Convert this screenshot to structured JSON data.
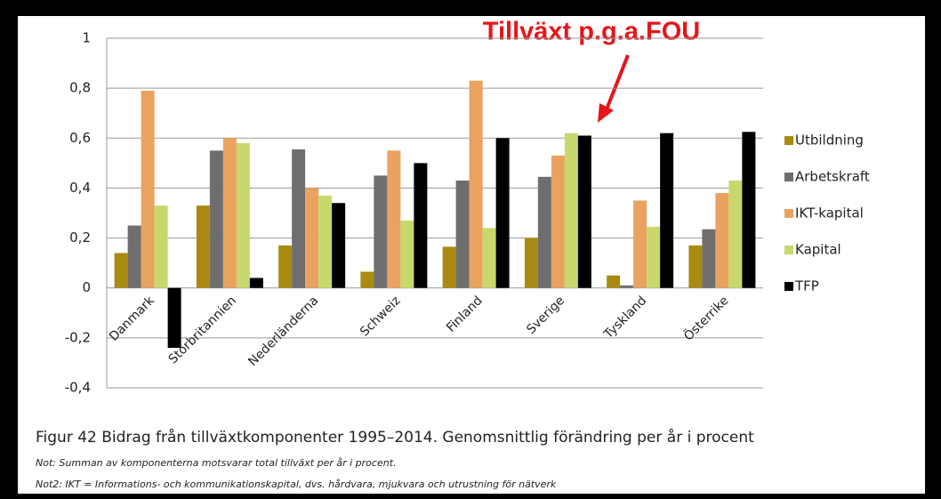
{
  "chart_data": {
    "type": "bar",
    "annotation": "Tillväxt p.g.a.FOU",
    "categories": [
      "Danmark",
      "Storbritannien",
      "Nederländerna",
      "Schweiz",
      "Finland",
      "Sverige",
      "Tyskland",
      "Österrike"
    ],
    "series": [
      {
        "name": "Utbildning",
        "color": "#a98a12",
        "values": [
          0.14,
          0.33,
          0.17,
          0.065,
          0.165,
          0.2,
          0.05,
          0.17
        ]
      },
      {
        "name": "Arbetskraft",
        "color": "#6e6e6e",
        "values": [
          0.25,
          0.55,
          0.555,
          0.45,
          0.43,
          0.445,
          0.01,
          0.235
        ]
      },
      {
        "name": "IKT-kapital",
        "color": "#e9a25f",
        "values": [
          0.79,
          0.6,
          0.4,
          0.55,
          0.83,
          0.53,
          0.35,
          0.38
        ]
      },
      {
        "name": "Kapital",
        "color": "#c9d86c",
        "values": [
          0.33,
          0.58,
          0.37,
          0.27,
          0.24,
          0.62,
          0.245,
          0.43
        ]
      },
      {
        "name": "TFP",
        "color": "#000000",
        "values": [
          -0.24,
          0.04,
          0.34,
          0.5,
          0.6,
          0.61,
          0.62,
          0.625
        ]
      }
    ],
    "ylim": [
      -0.4,
      1
    ],
    "yticks": [
      {
        "value": -0.4,
        "label": "-0,4"
      },
      {
        "value": -0.2,
        "label": "-0,2"
      },
      0,
      {
        "value": 0.2,
        "label": "0,2"
      },
      {
        "value": 0.4,
        "label": "0,4"
      },
      {
        "value": 0.6,
        "label": "0,6"
      },
      {
        "value": 0.8,
        "label": "0,8"
      },
      1
    ],
    "grid": true,
    "legend": "right"
  },
  "caption": "Figur 42 Bidrag från tillväxtkomponenter 1995–2014. Genomsnittlig förändring per år i procent",
  "notes": [
    "Not: Summan av komponenterna motsvarar total tillväxt per år i procent.",
    "Not2: IKT = Informations- och kommunikationskapital, dvs. hårdvara, mjukvara och utrustning för nätverk"
  ]
}
